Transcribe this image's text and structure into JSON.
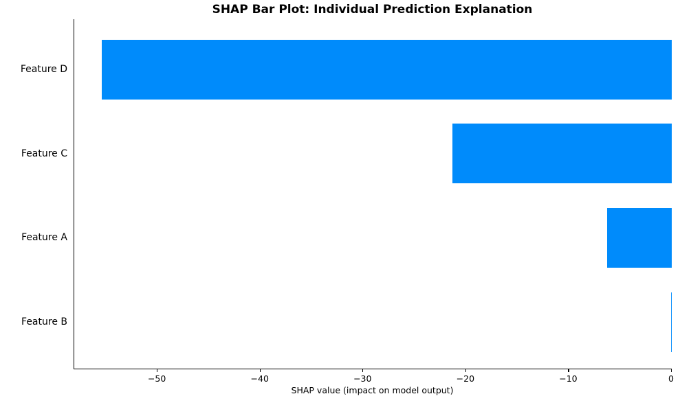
{
  "chart_data": {
    "type": "bar",
    "orientation": "horizontal",
    "title": "SHAP Bar Plot: Individual Prediction Explanation",
    "xlabel": "SHAP value (impact on model output)",
    "ylabel": "",
    "categories": [
      "Feature D",
      "Feature C",
      "Feature A",
      "Feature B"
    ],
    "values": [
      -55.4,
      -21.3,
      -6.3,
      -0.1
    ],
    "bar_color": "#008bfb",
    "xlim": [
      -58.1,
      0
    ],
    "x_ticks": [
      -50,
      -40,
      -30,
      -20,
      -10,
      0
    ],
    "x_tick_labels": [
      "−50",
      "−40",
      "−30",
      "−20",
      "−10",
      "0"
    ],
    "grid": false,
    "legend": null,
    "spines": [
      "left",
      "bottom"
    ]
  }
}
